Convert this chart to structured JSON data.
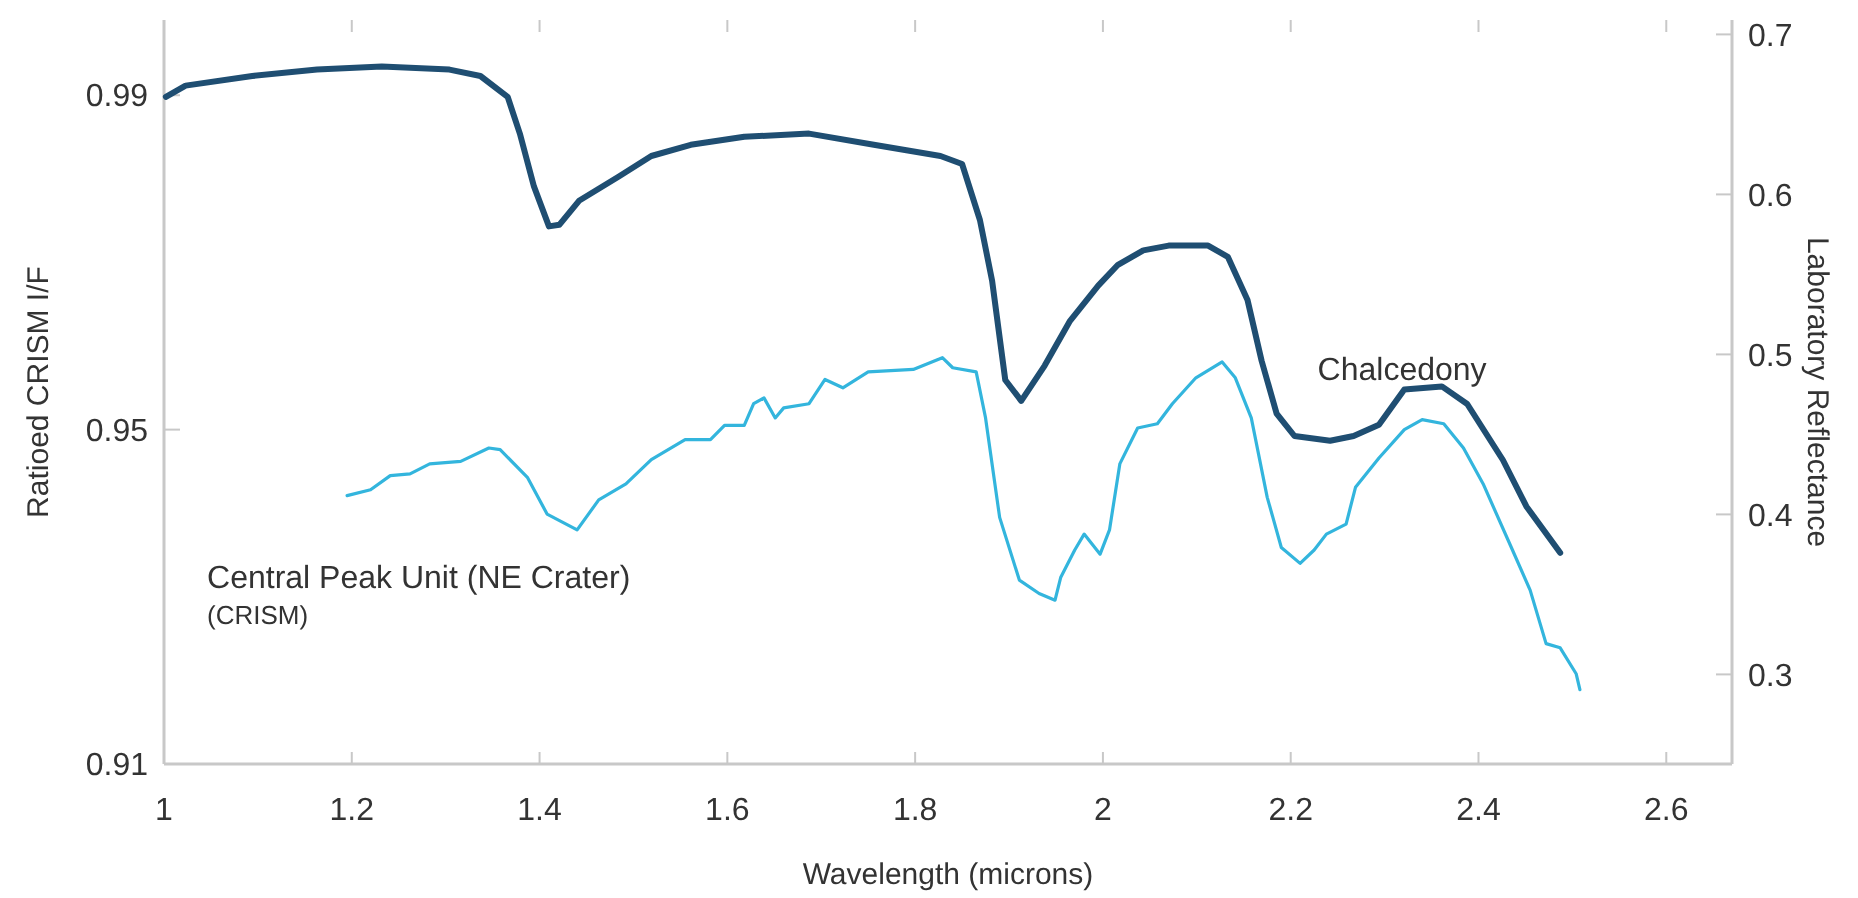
{
  "chart_data": {
    "type": "line",
    "xlabel": "Wavelength (microns)",
    "ylabel": "Ratioed CRISM I/F",
    "y2label": "Laboratory Reflectance",
    "xlim": [
      1,
      2.67
    ],
    "xticks": [
      1,
      1.2,
      1.4,
      1.6,
      1.8,
      2,
      2.2,
      2.4,
      2.6
    ],
    "ylim": [
      0.91,
      0.999
    ],
    "yticks": [
      0.91,
      0.95,
      0.99
    ],
    "y2lim": [
      0.244,
      0.709
    ],
    "y2ticks": [
      0.3,
      0.4,
      0.5,
      0.6,
      0.7
    ],
    "grid": false,
    "marker": "none",
    "line_style": "solid",
    "annotations": [
      "(CRISM)"
    ],
    "series": [
      {
        "name": "Chalcedony",
        "color": "#1f4e72",
        "axis": "y2",
        "x": [
          1.002,
          1.023,
          1.094,
          1.163,
          1.232,
          1.304,
          1.337,
          1.366,
          1.379,
          1.394,
          1.41,
          1.421,
          1.442,
          1.484,
          1.519,
          1.561,
          1.618,
          1.687,
          1.756,
          1.827,
          1.85,
          1.869,
          1.882,
          1.896,
          1.913,
          1.938,
          1.965,
          1.995,
          2.016,
          2.043,
          2.07,
          2.112,
          2.133,
          2.154,
          2.169,
          2.185,
          2.204,
          2.242,
          2.267,
          2.294,
          2.321,
          2.361,
          2.388,
          2.426,
          2.451,
          2.487
        ],
        "values": [
          0.661,
          0.668,
          0.674,
          0.678,
          0.68,
          0.678,
          0.674,
          0.661,
          0.638,
          0.605,
          0.58,
          0.581,
          0.596,
          0.611,
          0.624,
          0.631,
          0.636,
          0.638,
          0.631,
          0.624,
          0.619,
          0.584,
          0.546,
          0.484,
          0.471,
          0.493,
          0.521,
          0.543,
          0.556,
          0.565,
          0.568,
          0.568,
          0.561,
          0.534,
          0.496,
          0.463,
          0.449,
          0.446,
          0.449,
          0.456,
          0.478,
          0.48,
          0.469,
          0.434,
          0.405,
          0.376
        ]
      },
      {
        "name": "Central Peak Unit (NE Crater)",
        "color": "#33b5dd",
        "x": [
          1.195,
          1.22,
          1.241,
          1.262,
          1.283,
          1.316,
          1.346,
          1.358,
          1.387,
          1.408,
          1.44,
          1.463,
          1.492,
          1.519,
          1.555,
          1.582,
          1.597,
          1.618,
          1.628,
          1.639,
          1.651,
          1.66,
          1.687,
          1.704,
          1.723,
          1.75,
          1.798,
          1.829,
          1.84,
          1.865,
          1.875,
          1.89,
          1.911,
          1.932,
          1.949,
          1.955,
          1.97,
          1.98,
          1.997,
          2.007,
          2.018,
          2.037,
          2.058,
          2.074,
          2.099,
          2.127,
          2.141,
          2.158,
          2.175,
          2.19,
          2.21,
          2.225,
          2.238,
          2.259,
          2.269,
          2.294,
          2.321,
          2.34,
          2.363,
          2.384,
          2.405,
          2.435,
          2.455,
          2.472,
          2.487,
          2.504,
          2.508
        ],
        "values": [
          0.9421,
          0.9428,
          0.9445,
          0.9447,
          0.9459,
          0.9462,
          0.9478,
          0.9476,
          0.9443,
          0.9399,
          0.938,
          0.9416,
          0.9435,
          0.9464,
          0.9488,
          0.9488,
          0.9505,
          0.9505,
          0.9531,
          0.9538,
          0.9514,
          0.9526,
          0.9531,
          0.956,
          0.955,
          0.9569,
          0.9572,
          0.9586,
          0.9574,
          0.9569,
          0.9514,
          0.9395,
          0.932,
          0.9304,
          0.9296,
          0.9323,
          0.9356,
          0.9375,
          0.9351,
          0.938,
          0.9459,
          0.9502,
          0.9507,
          0.9531,
          0.9562,
          0.9581,
          0.9562,
          0.9514,
          0.9419,
          0.9359,
          0.934,
          0.9356,
          0.9375,
          0.9387,
          0.9431,
          0.9466,
          0.95,
          0.9512,
          0.9507,
          0.9478,
          0.9435,
          0.9359,
          0.9308,
          0.9244,
          0.9239,
          0.9208,
          0.9189
        ]
      }
    ]
  }
}
